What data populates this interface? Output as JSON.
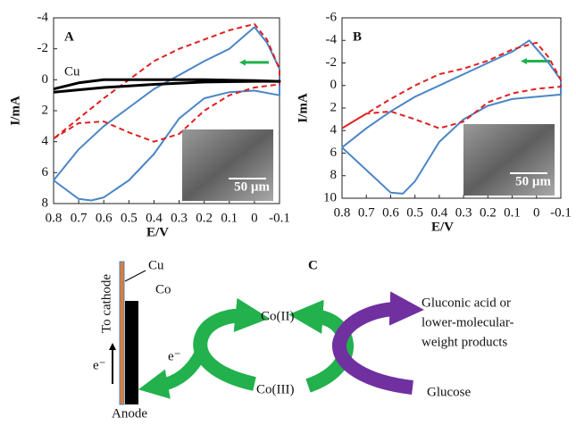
{
  "chart_data": [
    {
      "type": "line",
      "panel": "A",
      "xlabel": "E/V",
      "ylabel": "I/mA",
      "xlim": [
        0.8,
        -0.1
      ],
      "ylim": [
        8,
        -4
      ],
      "xticks": [
        0.8,
        0.7,
        0.6,
        0.5,
        0.4,
        0.3,
        0.2,
        0.1,
        0,
        -0.1
      ],
      "yticks": [
        -4,
        -2,
        0,
        2,
        4,
        6,
        8
      ],
      "inset_label": "50 µm",
      "series": [
        {
          "color": "#4a86c6",
          "style": "solid",
          "x": [
            0.8,
            0.7,
            0.65,
            0.6,
            0.5,
            0.4,
            0.3,
            0.2,
            0.1,
            0,
            -0.1,
            -0.1,
            -0.05,
            0,
            0.1,
            0.2,
            0.3,
            0.4,
            0.5,
            0.6,
            0.7,
            0.8
          ],
          "values": [
            6.5,
            7.7,
            7.8,
            7.6,
            6.5,
            4.8,
            2.5,
            1.2,
            0.8,
            0.7,
            1.0,
            -0.7,
            -2.4,
            -3.4,
            -2.0,
            -1.2,
            -0.3,
            0.6,
            1.8,
            3.0,
            4.5,
            6.5
          ]
        },
        {
          "color": "#e02020",
          "style": "dashed",
          "x": [
            0.8,
            0.7,
            0.6,
            0.5,
            0.4,
            0.3,
            0.2,
            0.1,
            0,
            -0.1,
            -0.1,
            -0.05,
            0,
            0.1,
            0.2,
            0.3,
            0.4,
            0.5,
            0.6,
            0.7,
            0.8
          ],
          "values": [
            3.8,
            2.8,
            2.7,
            3.4,
            4.0,
            3.5,
            2.0,
            1.0,
            0.5,
            0.3,
            -0.7,
            -2.6,
            -3.6,
            -3.2,
            -2.6,
            -2.0,
            -1.2,
            0.0,
            1.2,
            2.5,
            3.8
          ]
        },
        {
          "name": "Cu",
          "color": "#000000",
          "style": "solid",
          "x": [
            0.8,
            0.6,
            0.4,
            0.2,
            0,
            -0.1,
            0,
            0.2,
            0.4,
            0.6,
            0.7,
            0.8
          ],
          "values": [
            0.8,
            0.5,
            0.3,
            0.15,
            0.1,
            0.1,
            0.05,
            0.0,
            0.0,
            0.0,
            0.2,
            0.6
          ]
        }
      ]
    },
    {
      "type": "line",
      "panel": "B",
      "xlabel": "E/V",
      "ylabel": "I/mA",
      "xlim": [
        0.8,
        -0.1
      ],
      "ylim": [
        10,
        -6
      ],
      "xticks": [
        0.8,
        0.7,
        0.6,
        0.5,
        0.4,
        0.3,
        0.2,
        0.1,
        0,
        -0.1
      ],
      "yticks": [
        -6,
        -4,
        -2,
        0,
        2,
        4,
        6,
        8,
        10
      ],
      "inset_label": "50 µm",
      "series": [
        {
          "color": "#4a86c6",
          "style": "solid",
          "x": [
            0.8,
            0.7,
            0.6,
            0.55,
            0.5,
            0.4,
            0.3,
            0.2,
            0.1,
            0,
            -0.1,
            -0.1,
            -0.05,
            0.03,
            0.1,
            0.2,
            0.3,
            0.4,
            0.5,
            0.6,
            0.7,
            0.8
          ],
          "values": [
            5.5,
            7.5,
            9.5,
            9.6,
            8.5,
            5.0,
            3.0,
            1.8,
            1.2,
            1.0,
            0.8,
            -0.5,
            -2.0,
            -4.0,
            -3.0,
            -2.0,
            -1.0,
            0.0,
            1.0,
            2.3,
            3.8,
            5.5
          ]
        },
        {
          "color": "#e02020",
          "style": "dashed",
          "x": [
            0.8,
            0.7,
            0.6,
            0.5,
            0.4,
            0.3,
            0.2,
            0.1,
            0,
            -0.1,
            -0.1,
            -0.05,
            0,
            0.1,
            0.2,
            0.3,
            0.4,
            0.5,
            0.6,
            0.7,
            0.8
          ],
          "values": [
            3.8,
            2.5,
            2.3,
            3.0,
            3.8,
            3.2,
            1.5,
            0.7,
            0.3,
            0.1,
            -0.5,
            -2.5,
            -3.8,
            -3.2,
            -2.2,
            -1.5,
            -1.0,
            0.0,
            1.2,
            2.5,
            3.8
          ]
        }
      ]
    }
  ],
  "diagram": {
    "panel": "C",
    "cu": "Cu",
    "co": "Co",
    "to_cathode": "To cathode",
    "electron_left": "e⁻",
    "anode": "Anode",
    "electron_mid": "e⁻",
    "co2": "Co(II)",
    "co3": "Co(III)",
    "product_lines": [
      "Gluconic acid or",
      "lower-molecular-",
      "weight products"
    ],
    "glucose": "Glucose"
  }
}
